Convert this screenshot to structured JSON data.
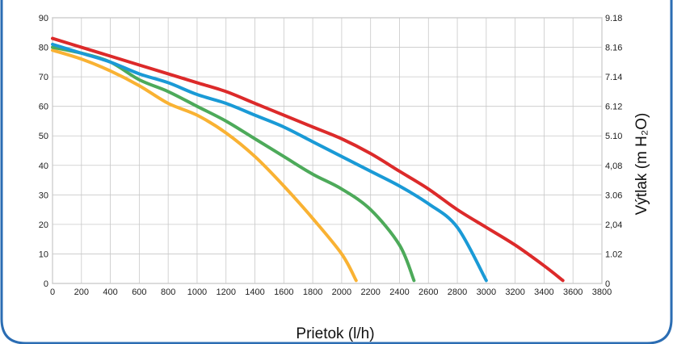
{
  "chart_data": {
    "type": "line",
    "xlabel": "Prietok (l/h)",
    "ylabel_right": "Výtlak  (m H₂O)",
    "xlim": [
      0,
      3800
    ],
    "ylim": [
      0,
      90
    ],
    "ylim_right": [
      0,
      9.18
    ],
    "x_ticks": [
      "0",
      "200",
      "400",
      "600",
      "800",
      "1000",
      "1200",
      "1400",
      "1600",
      "1800",
      "2000",
      "2200",
      "2400",
      "2600",
      "2800",
      "3000",
      "3200",
      "3400",
      "3600",
      "3800"
    ],
    "y_ticks": [
      "0",
      "10",
      "20",
      "30",
      "40",
      "50",
      "60",
      "70",
      "80",
      "90"
    ],
    "y_ticks_right": [
      "0",
      "1.02",
      "2,04",
      "3.06",
      "4,08",
      "5.10",
      "6.12",
      "7.14",
      "8.16",
      "9.18"
    ],
    "grid": true,
    "series": [
      {
        "color": "#f9b233",
        "points": [
          [
            0,
            79
          ],
          [
            200,
            76
          ],
          [
            400,
            72
          ],
          [
            600,
            67
          ],
          [
            800,
            61
          ],
          [
            1000,
            57
          ],
          [
            1200,
            51
          ],
          [
            1400,
            43
          ],
          [
            1600,
            33
          ],
          [
            1800,
            22
          ],
          [
            2000,
            10
          ],
          [
            2100,
            1
          ]
        ]
      },
      {
        "color": "#4daa5a",
        "points": [
          [
            0,
            80
          ],
          [
            200,
            78
          ],
          [
            400,
            75
          ],
          [
            600,
            69
          ],
          [
            800,
            65
          ],
          [
            1000,
            60
          ],
          [
            1200,
            55
          ],
          [
            1400,
            49
          ],
          [
            1600,
            43
          ],
          [
            1800,
            37
          ],
          [
            2000,
            32
          ],
          [
            2200,
            25
          ],
          [
            2400,
            13
          ],
          [
            2500,
            1
          ]
        ]
      },
      {
        "color": "#1a9ad6",
        "points": [
          [
            0,
            81
          ],
          [
            200,
            78
          ],
          [
            400,
            75
          ],
          [
            600,
            71
          ],
          [
            800,
            68
          ],
          [
            1000,
            64
          ],
          [
            1200,
            61
          ],
          [
            1400,
            57
          ],
          [
            1600,
            53
          ],
          [
            1800,
            48
          ],
          [
            2000,
            43
          ],
          [
            2200,
            38
          ],
          [
            2400,
            33
          ],
          [
            2600,
            27
          ],
          [
            2800,
            19
          ],
          [
            3000,
            1
          ]
        ]
      },
      {
        "color": "#dc2a2a",
        "points": [
          [
            0,
            83
          ],
          [
            200,
            80
          ],
          [
            400,
            77
          ],
          [
            600,
            74
          ],
          [
            800,
            71
          ],
          [
            1000,
            68
          ],
          [
            1200,
            65
          ],
          [
            1400,
            61
          ],
          [
            1600,
            57
          ],
          [
            1800,
            53
          ],
          [
            2000,
            49
          ],
          [
            2200,
            44
          ],
          [
            2400,
            38
          ],
          [
            2600,
            32
          ],
          [
            2800,
            25
          ],
          [
            3000,
            19
          ],
          [
            3200,
            13
          ],
          [
            3400,
            6
          ],
          [
            3530,
            1
          ]
        ]
      }
    ],
    "colors": {
      "frame": "#2b6db3",
      "grid": "#c8c8c8"
    }
  }
}
